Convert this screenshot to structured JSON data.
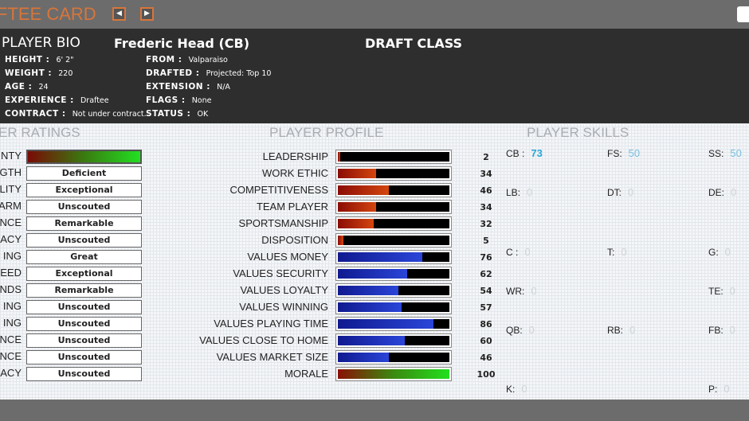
{
  "header": {
    "title": "DRAFTEE CARD",
    "title_visible": "FTEE CARD",
    "accent": "#d9753a"
  },
  "bio": {
    "section": "PLAYER BIO",
    "name": "Frederic Head (CB)",
    "draft_class": "DRAFT CLASS",
    "left": [
      {
        "k": "HEIGHT :",
        "v": "6' 2\""
      },
      {
        "k": "WEIGHT :",
        "v": "220"
      },
      {
        "k": "AGE :",
        "v": "24"
      },
      {
        "k": "EXPERIENCE :",
        "v": "Draftee"
      },
      {
        "k": "CONTRACT :",
        "v": "Not under contract."
      }
    ],
    "right": [
      {
        "k": "FROM :",
        "v": "Valparaiso"
      },
      {
        "k": "DRAFTED :",
        "v": "Projected: Top 10"
      },
      {
        "k": "EXTENSION :",
        "v": "N/A"
      },
      {
        "k": "FLAGS :",
        "v": "None"
      },
      {
        "k": "STATUS :",
        "v": "OK"
      }
    ]
  },
  "ratings": {
    "title": "ER RATINGS",
    "rows": [
      {
        "label": "NTY",
        "value": "",
        "bar": true
      },
      {
        "label": "GTH",
        "value": "Deficient"
      },
      {
        "label": "LITY",
        "value": "Exceptional"
      },
      {
        "label": "ARM",
        "value": "Unscouted"
      },
      {
        "label": "NCE",
        "value": "Remarkable"
      },
      {
        "label": "ACY",
        "value": "Unscouted"
      },
      {
        "label": "ING",
        "value": "Great"
      },
      {
        "label": "EED",
        "value": "Exceptional"
      },
      {
        "label": "NDS",
        "value": "Remarkable"
      },
      {
        "label": "ING",
        "value": "Unscouted"
      },
      {
        "label": "ING",
        "value": "Unscouted"
      },
      {
        "label": "NCE",
        "value": "Unscouted"
      },
      {
        "label": "NCE",
        "value": "Unscouted"
      },
      {
        "label": "ACY",
        "value": "Unscouted"
      }
    ]
  },
  "profile": {
    "title": "PLAYER PROFILE",
    "rows": [
      {
        "label": "LEADERSHIP",
        "value": 2,
        "color": "red"
      },
      {
        "label": "WORK ETHIC",
        "value": 34,
        "color": "red"
      },
      {
        "label": "COMPETITIVENESS",
        "value": 46,
        "color": "red"
      },
      {
        "label": "TEAM PLAYER",
        "value": 34,
        "color": "red"
      },
      {
        "label": "SPORTSMANSHIP",
        "value": 32,
        "color": "red"
      },
      {
        "label": "DISPOSITION",
        "value": 5,
        "color": "red"
      },
      {
        "label": "VALUES MONEY",
        "value": 76,
        "color": "blue"
      },
      {
        "label": "VALUES SECURITY",
        "value": 62,
        "color": "blue"
      },
      {
        "label": "VALUES LOYALTY",
        "value": 54,
        "color": "blue"
      },
      {
        "label": "VALUES WINNING",
        "value": 57,
        "color": "blue"
      },
      {
        "label": "VALUES PLAYING TIME",
        "value": 86,
        "color": "blue"
      },
      {
        "label": "VALUES CLOSE TO HOME",
        "value": 60,
        "color": "blue"
      },
      {
        "label": "VALUES MARKET SIZE",
        "value": 46,
        "color": "blue"
      },
      {
        "label": "MORALE",
        "value": 100,
        "color": "gradient"
      }
    ]
  },
  "skills": {
    "title": "PLAYER SKILLS",
    "items": [
      {
        "pos": "CB :",
        "val": "73"
      },
      {
        "pos": "FS:",
        "val": "50"
      },
      {
        "pos": "SS:",
        "val": "50"
      },
      {
        "pos": "LB:",
        "val": "0"
      },
      {
        "pos": "DT:",
        "val": "0"
      },
      {
        "pos": "DE:",
        "val": "0"
      },
      {
        "pos": "C :",
        "val": "0"
      },
      {
        "pos": "T:",
        "val": "0"
      },
      {
        "pos": "G:",
        "val": "0"
      },
      {
        "pos": "WR:",
        "val": "0"
      },
      {
        "pos": "TE:",
        "val": "0"
      },
      {
        "pos": "QB:",
        "val": "0"
      },
      {
        "pos": "RB:",
        "val": "0"
      },
      {
        "pos": "FB:",
        "val": "0"
      },
      {
        "pos": "K:",
        "val": "0"
      },
      {
        "pos": "P:",
        "val": "0"
      }
    ]
  }
}
